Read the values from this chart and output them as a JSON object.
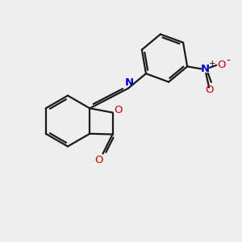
{
  "background_color": "#eeeeee",
  "bond_color": "#1a1a1a",
  "nitrogen_color": "#0000cc",
  "oxygen_color": "#cc0000",
  "line_width": 1.6,
  "figsize": [
    3.0,
    3.0
  ],
  "dpi": 100,
  "xlim": [
    0,
    10
  ],
  "ylim": [
    0,
    10
  ]
}
